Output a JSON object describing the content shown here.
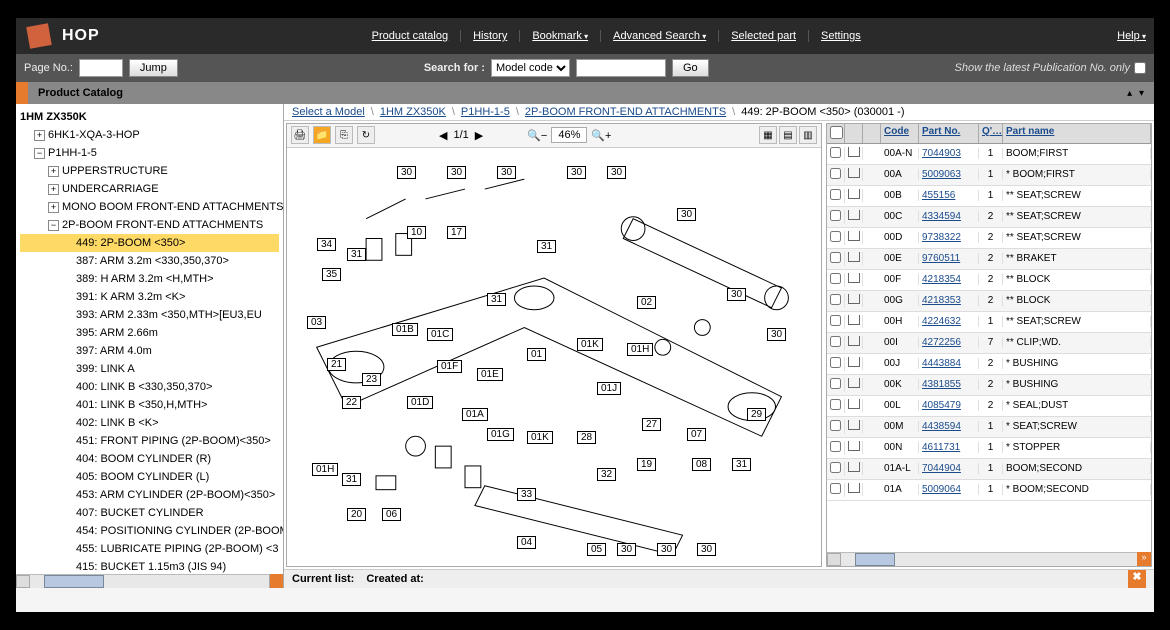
{
  "app_name": "HOP",
  "nav": {
    "product_catalog": "Product catalog",
    "history": "History",
    "bookmark": "Bookmark",
    "advanced_search": "Advanced Search",
    "selected_part": "Selected part",
    "settings": "Settings",
    "help": "Help"
  },
  "searchbar": {
    "page_no_label": "Page No.:",
    "jump": "Jump",
    "search_for": "Search for :",
    "search_mode": "Model code",
    "go": "Go",
    "latest_pub": "Show the latest Publication No. only"
  },
  "cat_header": "Product Catalog",
  "tree": {
    "model": "1HM ZX350K",
    "n1": "6HK1-XQA-3-HOP",
    "n2": "P1HH-1-5",
    "upperstructure": "UPPERSTRUCTURE",
    "undercarriage": "UNDERCARRIAGE",
    "mono": "MONO BOOM FRONT-END ATTACHMENTS",
    "twop": "2P-BOOM FRONT-END ATTACHMENTS",
    "i449": "449: 2P-BOOM <350>",
    "i387": "387: ARM 3.2m <330,350,370>",
    "i389": "389: H ARM 3.2m <H,MTH>",
    "i391": "391: K ARM 3.2m <K>",
    "i393": "393: ARM 2.33m <350,MTH>[EU3,EU",
    "i395": "395: ARM 2.66m",
    "i397": "397: ARM 4.0m",
    "i399": "399: LINK A",
    "i400": "400: LINK B <330,350,370>",
    "i401": "401: LINK B <350,H,MTH>",
    "i402": "402: LINK B <K>",
    "i451": "451: FRONT PIPING (2P-BOOM)<350>",
    "i404": "404: BOOM CYLINDER (R)",
    "i405": "405: BOOM CYLINDER (L)",
    "i453": "453: ARM CYLINDER (2P-BOOM)<350>",
    "i407": "407: BUCKET CYLINDER",
    "i454": "454: POSITIONING CYLINDER (2P-BOOM)",
    "i455": "455: LUBRICATE PIPING (2P-BOOM) <3",
    "i415": "415: BUCKET 1.15m3 (JIS 94)"
  },
  "breadcrumb": {
    "select_model": "Select a Model",
    "b1": "1HM ZX350K",
    "b2": "P1HH-1-5",
    "b3": "2P-BOOM FRONT-END ATTACHMENTS",
    "b4": "449: 2P-BOOM <350> (030001 -)"
  },
  "toolbar": {
    "page": "1/1",
    "zoom": "46%"
  },
  "table": {
    "h_code": "Code",
    "h_partno": "Part No.",
    "h_qty": "Q'…",
    "h_name": "Part name",
    "rows": [
      {
        "code": "00A-N",
        "partno": "7044903",
        "qty": "1",
        "name": "BOOM;FIRST"
      },
      {
        "code": "00A",
        "partno": "5009063",
        "qty": "1",
        "name": "* BOOM;FIRST"
      },
      {
        "code": "00B",
        "partno": "455156",
        "qty": "1",
        "name": "** SEAT;SCREW"
      },
      {
        "code": "00C",
        "partno": "4334594",
        "qty": "2",
        "name": "** SEAT;SCREW"
      },
      {
        "code": "00D",
        "partno": "9738322",
        "qty": "2",
        "name": "** SEAT;SCREW"
      },
      {
        "code": "00E",
        "partno": "9760511",
        "qty": "2",
        "name": "** BRAKET"
      },
      {
        "code": "00F",
        "partno": "4218354",
        "qty": "2",
        "name": "** BLOCK"
      },
      {
        "code": "00G",
        "partno": "4218353",
        "qty": "2",
        "name": "** BLOCK"
      },
      {
        "code": "00H",
        "partno": "4224632",
        "qty": "1",
        "name": "** SEAT;SCREW"
      },
      {
        "code": "00I",
        "partno": "4272256",
        "qty": "7",
        "name": "** CLIP;WD."
      },
      {
        "code": "00J",
        "partno": "4443884",
        "qty": "2",
        "name": "* BUSHING"
      },
      {
        "code": "00K",
        "partno": "4381855",
        "qty": "2",
        "name": "* BUSHING"
      },
      {
        "code": "00L",
        "partno": "4085479",
        "qty": "2",
        "name": "* SEAL;DUST"
      },
      {
        "code": "00M",
        "partno": "4438594",
        "qty": "1",
        "name": "* SEAT;SCREW"
      },
      {
        "code": "00N",
        "partno": "4611731",
        "qty": "1",
        "name": "* STOPPER"
      },
      {
        "code": "01A-L",
        "partno": "7044904",
        "qty": "1",
        "name": "BOOM;SECOND"
      },
      {
        "code": "01A",
        "partno": "5009064",
        "qty": "1",
        "name": "* BOOM;SECOND"
      }
    ]
  },
  "callouts": [
    "30",
    "30",
    "30",
    "30",
    "30",
    "30",
    "30",
    "34",
    "31",
    "35",
    "10",
    "17",
    "31",
    "03",
    "02",
    "30",
    "01B",
    "01C",
    "31",
    "01",
    "01K",
    "01H",
    "21",
    "01F",
    "01E",
    "23",
    "22",
    "01D",
    "01J",
    "01A",
    "01G",
    "01K",
    "28",
    "27",
    "07",
    "29",
    "01H",
    "31",
    "32",
    "19",
    "20",
    "06",
    "33",
    "08",
    "31",
    "04",
    "05",
    "30",
    "30",
    "30"
  ],
  "status": {
    "current": "Current list:",
    "created": "Created at:"
  }
}
